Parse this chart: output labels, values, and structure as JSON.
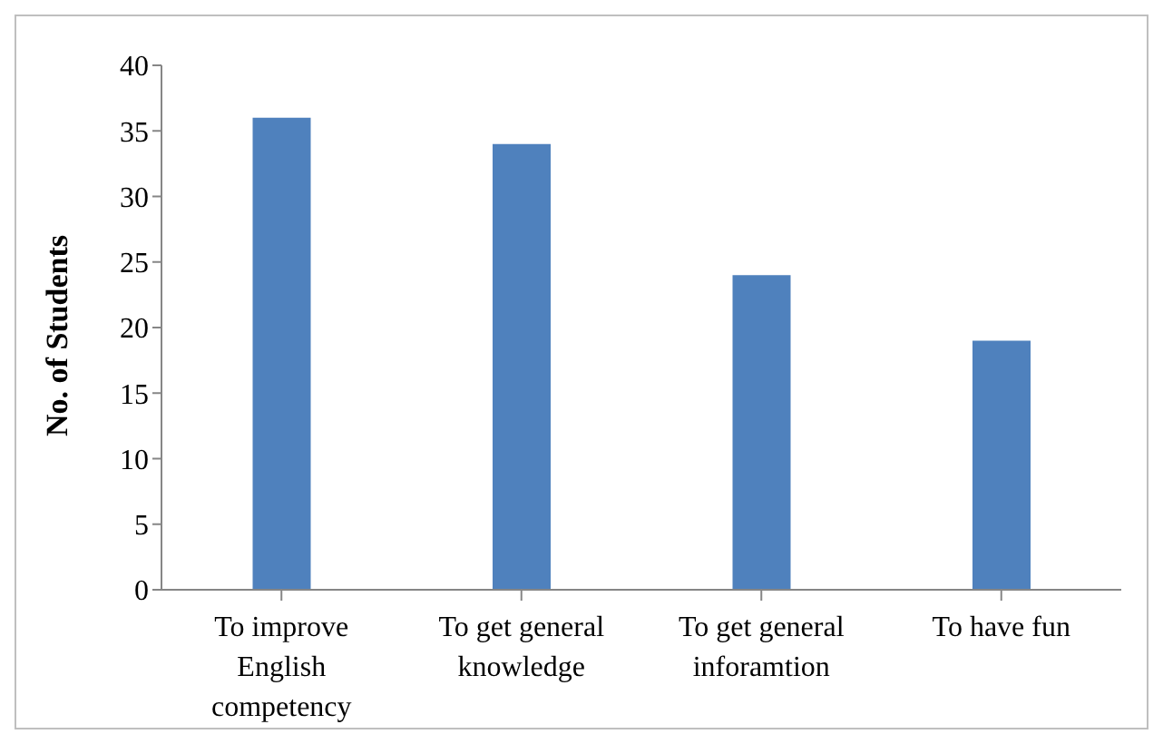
{
  "chart_data": {
    "type": "bar",
    "ylabel": "No. of Students",
    "categories": [
      "To improve English competency",
      "To get general knowledge",
      "To get general inforamtion",
      "To have fun"
    ],
    "values": [
      36,
      34,
      24,
      19
    ],
    "color": "#4f81bd",
    "ylim": [
      0,
      40
    ],
    "yticks": [
      0,
      5,
      10,
      15,
      20,
      25,
      30,
      35,
      40
    ],
    "grid": false,
    "legend": false
  }
}
